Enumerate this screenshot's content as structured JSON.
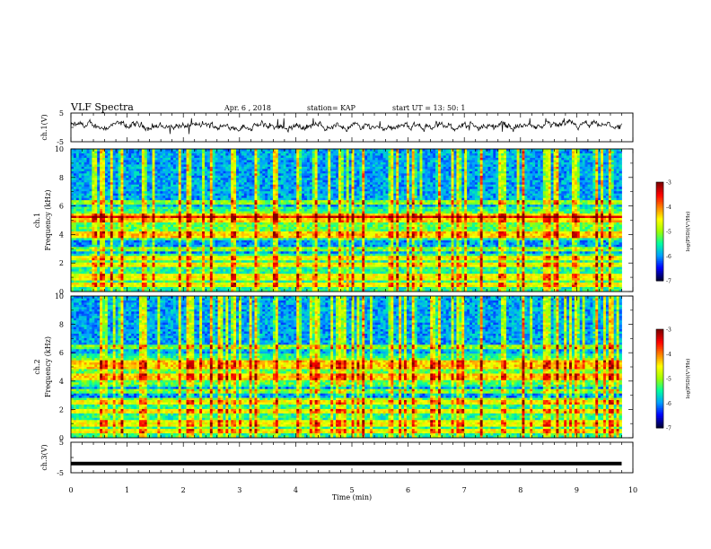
{
  "header": {
    "title": "VLF Spectra",
    "date": "Apr. 6 , 2018",
    "station": "station= KAP",
    "start": "start UT =  13: 50: 1"
  },
  "chart_data": [
    {
      "type": "line",
      "panel": "ch1-waveform",
      "ylabel": "ch.1(V)",
      "ylim": [
        -5,
        5
      ],
      "yticks": [
        "5",
        "-5"
      ],
      "xlim": [
        0,
        10
      ],
      "series": [
        {
          "description_values": "noisy waveform fluctuating roughly between -1.5 and 2.5 V"
        }
      ]
    },
    {
      "type": "heatmap",
      "panel": "ch1-spectrogram",
      "ylabel": "ch.1\nFrequency (kHz)",
      "ylim": [
        0,
        10
      ],
      "yticks": [
        "0",
        "2",
        "4",
        "6",
        "8",
        "10"
      ],
      "xlim": [
        0,
        9.8
      ],
      "colorbar": {
        "label": "log(PSD)(V²/Hz)",
        "range": [
          -7,
          -3
        ],
        "ticks": [
          "-3",
          "-4",
          "-5",
          "-6",
          "-7"
        ]
      },
      "bands_khz": [
        0.5,
        1.0,
        1.9,
        2.3,
        3.0,
        4.0,
        5.1,
        5.3,
        6.3
      ],
      "impulse_times_min": [
        0.55,
        0.9,
        1.3,
        2.1,
        2.5,
        2.9,
        3.3,
        3.65,
        4.05,
        4.35,
        4.8,
        5.2,
        5.7,
        6.1,
        6.55,
        6.9,
        7.3,
        7.7,
        8.05,
        8.45,
        8.65,
        9.0,
        9.35,
        9.6
      ]
    },
    {
      "type": "heatmap",
      "panel": "ch2-spectrogram",
      "ylabel": "ch.2\nFrequency (kHz)",
      "ylim": [
        0,
        10
      ],
      "yticks": [
        "0",
        "2",
        "4",
        "6",
        "8",
        "10"
      ],
      "xlim": [
        0,
        9.8
      ],
      "colorbar": {
        "label": "log(PSD)(V²/Hz)",
        "range": [
          -7,
          -3
        ],
        "ticks": [
          "-3",
          "-4",
          "-5",
          "-6",
          "-7"
        ]
      },
      "bands_khz": [
        0.5,
        1.0,
        1.9,
        2.6,
        3.3,
        4.3,
        5.0,
        5.3,
        6.4
      ],
      "impulse_times_min": [
        0.55,
        0.9,
        1.3,
        2.1,
        2.5,
        2.9,
        3.3,
        3.65,
        4.05,
        4.35,
        4.8,
        5.2,
        5.7,
        6.1,
        6.55,
        6.9,
        7.3,
        7.7,
        8.05,
        8.45,
        8.65,
        9.0,
        9.35,
        9.6
      ]
    },
    {
      "type": "line",
      "panel": "ch3-waveform",
      "ylabel": "ch.3(V)",
      "ylim": [
        -5,
        5
      ],
      "yticks": [
        "5",
        "-5"
      ],
      "xlim": [
        0,
        10
      ],
      "series": [
        {
          "values_constant": -2
        }
      ]
    }
  ],
  "xaxis": {
    "label": "Time (min)",
    "ticks": [
      "0",
      "1",
      "2",
      "3",
      "4",
      "5",
      "6",
      "7",
      "8",
      "9",
      "10"
    ]
  },
  "colors": {
    "colormap": [
      "#00003a",
      "#0000ff",
      "#00a0ff",
      "#00ffa0",
      "#a0ff00",
      "#ffff00",
      "#ff8000",
      "#ff0000",
      "#800000"
    ]
  }
}
